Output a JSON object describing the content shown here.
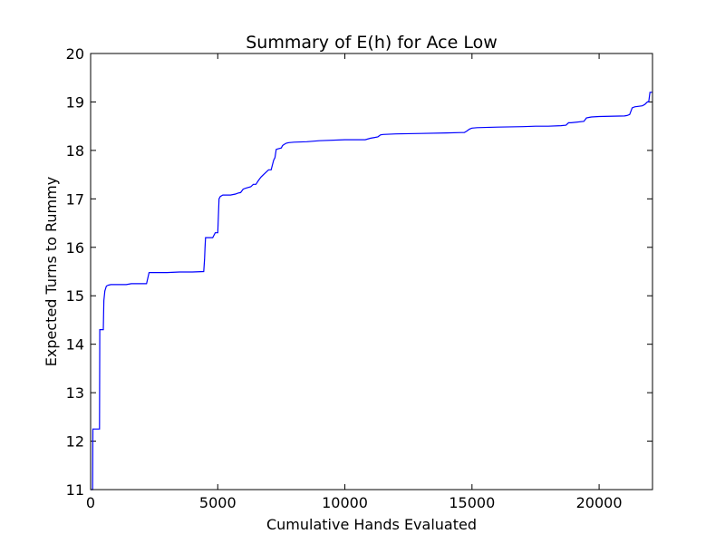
{
  "chart_data": {
    "type": "line",
    "title": "Summary of E(h) for Ace Low",
    "xlabel": "Cumulative Hands Evaluated",
    "ylabel": "Expected Turns to Rummy",
    "xlim": [
      0,
      22100
    ],
    "ylim": [
      11,
      20
    ],
    "xticks": [
      0,
      5000,
      10000,
      15000,
      20000
    ],
    "yticks": [
      11,
      12,
      13,
      14,
      15,
      16,
      17,
      18,
      19,
      20
    ],
    "grid": false,
    "legend": "none",
    "series": [
      {
        "color": "#0000ff",
        "x": [
          0,
          80,
          90,
          120,
          350,
          360,
          500,
          520,
          560,
          620,
          700,
          800,
          1000,
          1400,
          1600,
          1800,
          2200,
          2300,
          2350,
          3000,
          3500,
          4000,
          4450,
          4480,
          4500,
          4520,
          4550,
          4600,
          4800,
          4900,
          5000,
          5050,
          5100,
          5200,
          5500,
          5700,
          5800,
          5900,
          6000,
          6100,
          6300,
          6400,
          6500,
          6600,
          6700,
          6800,
          6900,
          7000,
          7100,
          7150,
          7200,
          7250,
          7300,
          7350,
          7500,
          7550,
          7600,
          7700,
          7800,
          8000,
          8500,
          9000,
          10000,
          10800,
          11000,
          11200,
          11300,
          11400,
          11500,
          12000,
          13000,
          14000,
          14700,
          14800,
          14900,
          15000,
          15200,
          16000,
          17000,
          17500,
          18000,
          18500,
          18700,
          18800,
          18900,
          19400,
          19500,
          19600,
          19700,
          20000,
          21000,
          21100,
          21200,
          21300,
          21400,
          21700,
          21800,
          21900,
          21950,
          22000,
          22050,
          22100
        ],
        "y": [
          11.0,
          11.0,
          12.25,
          12.25,
          12.25,
          14.3,
          14.3,
          14.9,
          15.1,
          15.2,
          15.22,
          15.23,
          15.23,
          15.23,
          15.25,
          15.25,
          15.25,
          15.48,
          15.48,
          15.48,
          15.49,
          15.49,
          15.5,
          15.75,
          15.98,
          16.2,
          16.2,
          16.2,
          16.2,
          16.3,
          16.3,
          17.0,
          17.05,
          17.08,
          17.08,
          17.1,
          17.12,
          17.13,
          17.2,
          17.22,
          17.25,
          17.3,
          17.3,
          17.38,
          17.45,
          17.5,
          17.55,
          17.6,
          17.6,
          17.7,
          17.8,
          17.85,
          18.02,
          18.03,
          18.05,
          18.1,
          18.12,
          18.15,
          18.16,
          18.17,
          18.18,
          18.2,
          18.22,
          18.22,
          18.25,
          18.27,
          18.28,
          18.32,
          18.33,
          18.34,
          18.35,
          18.36,
          18.37,
          18.4,
          18.44,
          18.46,
          18.47,
          18.48,
          18.49,
          18.5,
          18.5,
          18.51,
          18.52,
          18.57,
          18.57,
          18.6,
          18.67,
          18.68,
          18.69,
          18.7,
          18.71,
          18.72,
          18.74,
          18.88,
          18.9,
          18.92,
          18.95,
          19.0,
          19.0,
          19.2,
          19.2,
          19.2
        ]
      }
    ]
  }
}
